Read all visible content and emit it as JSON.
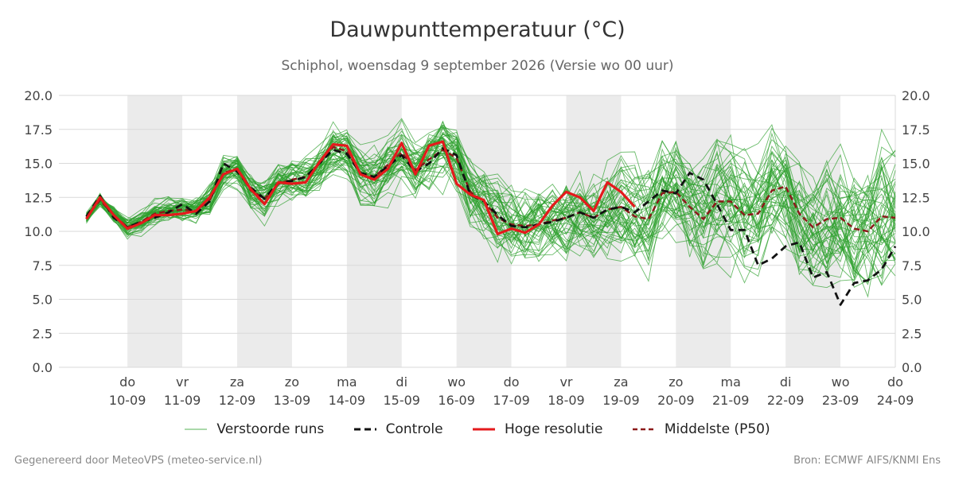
{
  "title": "Dauwpunttemperatuur (°C)",
  "subtitle": "Schiphol, woensdag  9 september 2026 (Versie wo 00 uur)",
  "footer": {
    "left": "Gegenereerd door MeteoVPS (meteo-service.nl)",
    "right": "Bron: ECMWF AIFS/KNMI Ens"
  },
  "legend": [
    {
      "label": "Verstoorde runs",
      "color": "#2ca02c",
      "style": "thin-solid"
    },
    {
      "label": "Controle",
      "color": "#111111",
      "style": "dashed"
    },
    {
      "label": "Hoge resolutie",
      "color": "#e41a1c",
      "style": "solid"
    },
    {
      "label": "Middelste (P50)",
      "color": "#8b1a1a",
      "style": "dashed"
    }
  ],
  "chart_data": {
    "type": "line",
    "x_unit": "dag sinds 10-09",
    "xlim": [
      -1.25,
      14
    ],
    "ylim": [
      0,
      20
    ],
    "yticks": [
      "0.0",
      "2.5",
      "5.0",
      "7.5",
      "10.0",
      "12.5",
      "15.0",
      "17.5",
      "20.0"
    ],
    "grid": true,
    "weekend_shading": [
      [
        0,
        1
      ],
      [
        2,
        3
      ],
      [
        4,
        5
      ],
      [
        6,
        7
      ],
      [
        8,
        9
      ],
      [
        10,
        11
      ],
      [
        12,
        13
      ]
    ],
    "x_ticks": [
      {
        "day": "do",
        "date": "10-09"
      },
      {
        "day": "vr",
        "date": "11-09"
      },
      {
        "day": "za",
        "date": "12-09"
      },
      {
        "day": "zo",
        "date": "13-09"
      },
      {
        "day": "ma",
        "date": "14-09"
      },
      {
        "day": "di",
        "date": "15-09"
      },
      {
        "day": "wo",
        "date": "16-09"
      },
      {
        "day": "do",
        "date": "17-09"
      },
      {
        "day": "vr",
        "date": "18-09"
      },
      {
        "day": "za",
        "date": "19-09"
      },
      {
        "day": "zo",
        "date": "20-09"
      },
      {
        "day": "ma",
        "date": "21-09"
      },
      {
        "day": "di",
        "date": "22-09"
      },
      {
        "day": "wo",
        "date": "23-09"
      },
      {
        "day": "do",
        "date": "24-09"
      }
    ],
    "series": [
      {
        "name": "Hoge resolutie",
        "color": "#e41a1c",
        "points": [
          [
            -0.75,
            10.9
          ],
          [
            -0.5,
            12.5
          ],
          [
            -0.25,
            11.2
          ],
          [
            0,
            10.2
          ],
          [
            0.25,
            10.6
          ],
          [
            0.5,
            11.2
          ],
          [
            0.75,
            11.2
          ],
          [
            1,
            11.3
          ],
          [
            1.25,
            11.5
          ],
          [
            1.5,
            12.5
          ],
          [
            1.75,
            14.2
          ],
          [
            2,
            14.6
          ],
          [
            2.25,
            13.1
          ],
          [
            2.5,
            12.0
          ],
          [
            2.75,
            13.6
          ],
          [
            3,
            13.5
          ],
          [
            3.25,
            13.6
          ],
          [
            3.5,
            15.1
          ],
          [
            3.75,
            16.4
          ],
          [
            4,
            16.3
          ],
          [
            4.25,
            14.2
          ],
          [
            4.5,
            13.8
          ],
          [
            4.75,
            14.6
          ],
          [
            5,
            16.5
          ],
          [
            5.25,
            14.2
          ],
          [
            5.5,
            16.3
          ],
          [
            5.75,
            16.6
          ],
          [
            6,
            13.5
          ],
          [
            6.25,
            12.7
          ],
          [
            6.5,
            12.3
          ],
          [
            6.75,
            9.8
          ],
          [
            7,
            10.2
          ],
          [
            7.25,
            9.9
          ],
          [
            7.5,
            10.5
          ],
          [
            7.75,
            11.9
          ],
          [
            8,
            12.9
          ],
          [
            8.25,
            12.5
          ],
          [
            8.5,
            11.5
          ],
          [
            8.75,
            13.6
          ],
          [
            9,
            12.9
          ],
          [
            9.25,
            11.8
          ]
        ]
      },
      {
        "name": "Controle",
        "color": "#111111",
        "points": [
          [
            -0.75,
            11.1
          ],
          [
            -0.5,
            12.6
          ],
          [
            -0.25,
            11.0
          ],
          [
            0,
            10.3
          ],
          [
            0.25,
            10.7
          ],
          [
            0.5,
            11.0
          ],
          [
            0.75,
            11.4
          ],
          [
            1,
            12.0
          ],
          [
            1.25,
            11.3
          ],
          [
            1.5,
            12.2
          ],
          [
            1.75,
            15.0
          ],
          [
            2,
            14.4
          ],
          [
            2.25,
            13.2
          ],
          [
            2.5,
            12.4
          ],
          [
            2.75,
            13.6
          ],
          [
            3,
            13.7
          ],
          [
            3.25,
            14.0
          ],
          [
            3.5,
            15.0
          ],
          [
            3.75,
            16.0
          ],
          [
            4,
            15.7
          ],
          [
            4.25,
            14.3
          ],
          [
            4.5,
            14.0
          ],
          [
            4.75,
            14.8
          ],
          [
            5,
            15.6
          ],
          [
            5.25,
            14.4
          ],
          [
            5.5,
            15.0
          ],
          [
            5.75,
            16.1
          ],
          [
            6,
            15.6
          ],
          [
            6.25,
            12.7
          ],
          [
            6.5,
            12.2
          ],
          [
            6.75,
            11.2
          ],
          [
            7,
            10.4
          ],
          [
            7.25,
            10.3
          ],
          [
            7.5,
            10.5
          ],
          [
            7.75,
            10.7
          ],
          [
            8,
            11.0
          ],
          [
            8.25,
            11.4
          ],
          [
            8.5,
            11.0
          ],
          [
            8.75,
            11.6
          ],
          [
            9,
            11.8
          ],
          [
            9.25,
            11.4
          ],
          [
            9.5,
            12.2
          ],
          [
            9.75,
            13.0
          ],
          [
            10,
            12.8
          ],
          [
            10.25,
            14.3
          ],
          [
            10.5,
            13.8
          ],
          [
            10.75,
            12.0
          ],
          [
            11,
            10.1
          ],
          [
            11.25,
            10.1
          ],
          [
            11.5,
            7.5
          ],
          [
            11.75,
            8.0
          ],
          [
            12,
            8.9
          ],
          [
            12.25,
            9.2
          ],
          [
            12.5,
            6.6
          ],
          [
            12.75,
            7.0
          ],
          [
            13,
            4.6
          ],
          [
            13.25,
            6.2
          ],
          [
            13.5,
            6.4
          ],
          [
            13.75,
            7.2
          ],
          [
            14,
            8.9
          ]
        ]
      },
      {
        "name": "Middelste (P50)",
        "color": "#8b1a1a",
        "points": [
          [
            -0.75,
            11.0
          ],
          [
            -0.5,
            12.3
          ],
          [
            -0.25,
            11.2
          ],
          [
            0,
            10.3
          ],
          [
            0.25,
            10.7
          ],
          [
            0.5,
            11.3
          ],
          [
            0.75,
            11.5
          ],
          [
            1,
            11.6
          ],
          [
            1.25,
            11.5
          ],
          [
            1.5,
            12.3
          ],
          [
            1.75,
            14.3
          ],
          [
            2,
            14.6
          ],
          [
            2.25,
            13.0
          ],
          [
            2.5,
            12.4
          ],
          [
            2.75,
            13.5
          ],
          [
            3,
            13.8
          ],
          [
            3.25,
            14.0
          ],
          [
            3.5,
            15.0
          ],
          [
            3.75,
            16.2
          ],
          [
            4,
            15.9
          ],
          [
            4.25,
            14.3
          ],
          [
            4.5,
            14.0
          ],
          [
            4.75,
            14.9
          ],
          [
            5,
            15.8
          ],
          [
            5.25,
            14.5
          ],
          [
            5.5,
            15.3
          ],
          [
            5.75,
            16.0
          ],
          [
            6,
            15.4
          ],
          [
            6.25,
            12.9
          ],
          [
            6.5,
            12.2
          ],
          [
            6.75,
            11.0
          ],
          [
            7,
            10.5
          ],
          [
            7.25,
            10.4
          ],
          [
            7.5,
            10.5
          ],
          [
            7.75,
            10.8
          ],
          [
            8,
            11.0
          ],
          [
            8.25,
            11.4
          ],
          [
            8.5,
            11.0
          ],
          [
            8.75,
            11.6
          ],
          [
            9,
            11.8
          ],
          [
            9.25,
            11.1
          ],
          [
            9.5,
            10.9
          ],
          [
            9.75,
            12.8
          ],
          [
            10,
            12.9
          ],
          [
            10.25,
            11.8
          ],
          [
            10.5,
            10.9
          ],
          [
            10.75,
            12.2
          ],
          [
            11,
            12.2
          ],
          [
            11.25,
            11.2
          ],
          [
            11.5,
            11.3
          ],
          [
            11.75,
            13.0
          ],
          [
            12,
            13.3
          ],
          [
            12.25,
            11.3
          ],
          [
            12.5,
            10.3
          ],
          [
            12.75,
            10.9
          ],
          [
            13,
            11.0
          ],
          [
            13.25,
            10.2
          ],
          [
            13.5,
            10.0
          ],
          [
            13.75,
            11.1
          ],
          [
            14,
            11.0
          ]
        ]
      }
    ]
  }
}
